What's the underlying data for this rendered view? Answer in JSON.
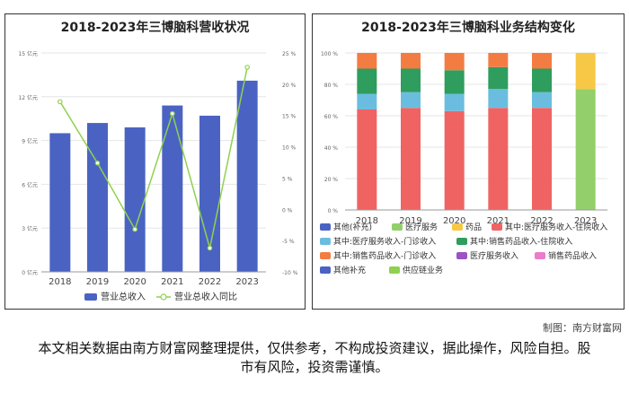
{
  "credit": "制图：南方财富网",
  "disclaimer": "本文相关数据由南方财富网整理提供，仅供参考，不构成投资建议，据此操作，风险自担。股市有风险，投资需谨慎。",
  "chart_data": [
    {
      "type": "bar",
      "title": "2018-2023年三博脑科营收状况",
      "categories": [
        "2018",
        "2019",
        "2020",
        "2021",
        "2022",
        "2023"
      ],
      "series": [
        {
          "name": "营业总收入",
          "type": "bar",
          "axis": "left",
          "color": "#4a63c2",
          "values": [
            9.5,
            10.2,
            9.9,
            11.4,
            10.7,
            13.1
          ]
        },
        {
          "name": "营业总收入同比",
          "type": "line",
          "axis": "right",
          "color": "#8fd14f",
          "values": [
            17.2,
            7.4,
            -3.2,
            15.3,
            -6.2,
            22.7
          ]
        }
      ],
      "left_axis": {
        "ticks": [
          0,
          3,
          6,
          9,
          12,
          15
        ],
        "tick_labels": [
          "0 亿元",
          "3 亿元",
          "6 亿元",
          "9 亿元",
          "12 亿元",
          "15 亿元"
        ],
        "ylim": [
          0,
          15
        ]
      },
      "right_axis": {
        "ticks": [
          -10,
          -5,
          0,
          5,
          10,
          15,
          20,
          25
        ],
        "tick_labels": [
          "-10 %",
          "-5 %",
          "0 %",
          "5 %",
          "10 %",
          "15 %",
          "20 %",
          "25 %"
        ],
        "ylim": [
          -10,
          25
        ]
      },
      "grid": true,
      "legend": "bottom"
    },
    {
      "type": "bar",
      "stacked": true,
      "title": "2018-2023年三博脑科业务结构变化",
      "categories": [
        "2018",
        "2019",
        "2020",
        "2021",
        "2022",
        "2023"
      ],
      "ylim": [
        0,
        100
      ],
      "y_ticks": [
        0,
        20,
        40,
        60,
        80,
        100
      ],
      "y_tick_labels": [
        "0 %",
        "20 %",
        "40 %",
        "60 %",
        "80 %",
        "100 %"
      ],
      "series": [
        {
          "name": "其他(补充)",
          "color": "#4a63c2",
          "values": [
            0,
            0,
            0,
            0,
            0,
            0
          ]
        },
        {
          "name": "医疗服务",
          "color": "#93cf6a",
          "values": [
            0,
            0,
            0,
            0,
            0,
            77
          ]
        },
        {
          "name": "药品",
          "color": "#f7c846",
          "values": [
            0,
            0,
            0,
            0,
            0,
            23
          ]
        },
        {
          "name": "其中:医疗服务收入-住院收入",
          "color": "#ef6363",
          "values": [
            64,
            65,
            63,
            65,
            65,
            0
          ]
        },
        {
          "name": "其中:医疗服务收入-门诊收入",
          "color": "#6bbde0",
          "values": [
            10,
            10,
            11,
            12,
            10,
            0
          ]
        },
        {
          "name": "其中:销售药品收入-住院收入",
          "color": "#2e9d5e",
          "values": [
            16,
            15,
            15,
            14,
            15,
            0
          ]
        },
        {
          "name": "其中:销售药品收入-门诊收入",
          "color": "#f37c43",
          "values": [
            10,
            10,
            11,
            9,
            10,
            0
          ]
        },
        {
          "name": "医疗服务收入",
          "color": "#9b53c4",
          "values": [
            0,
            0,
            0,
            0,
            0,
            0
          ]
        },
        {
          "name": "销售药品收入",
          "color": "#ea7ccc",
          "values": [
            0,
            0,
            0,
            0,
            0,
            0
          ]
        },
        {
          "name": "其他补充",
          "color": "#4a63c2",
          "values": [
            0,
            0,
            0,
            0,
            0,
            0
          ]
        },
        {
          "name": "供应链业务",
          "color": "#8fd14f",
          "values": [
            0,
            0,
            0,
            0,
            0,
            0
          ]
        }
      ],
      "grid": true,
      "legend": "bottom"
    }
  ]
}
